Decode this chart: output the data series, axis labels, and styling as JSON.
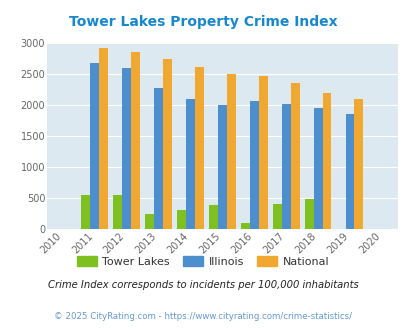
{
  "title": "Tower Lakes Property Crime Index",
  "title_color": "#1888cc",
  "years": [
    2011,
    2012,
    2013,
    2014,
    2015,
    2016,
    2017,
    2018,
    2019
  ],
  "tower_lakes": [
    555,
    555,
    250,
    310,
    390,
    100,
    410,
    495,
    0
  ],
  "illinois": [
    2670,
    2590,
    2280,
    2090,
    2000,
    2060,
    2020,
    1950,
    1860
  ],
  "national": [
    2910,
    2860,
    2740,
    2610,
    2500,
    2470,
    2360,
    2190,
    2100
  ],
  "tower_lakes_color": "#7dc020",
  "illinois_color": "#4d8fcc",
  "national_color": "#f0a830",
  "bg_color": "#dde9f0",
  "xlim": [
    2009.5,
    2020.5
  ],
  "ylim": [
    0,
    3000
  ],
  "yticks": [
    0,
    500,
    1000,
    1500,
    2000,
    2500,
    3000
  ],
  "xticks": [
    2010,
    2011,
    2012,
    2013,
    2014,
    2015,
    2016,
    2017,
    2018,
    2019,
    2020
  ],
  "note": "Crime Index corresponds to incidents per 100,000 inhabitants",
  "copyright": "© 2025 CityRating.com - https://www.cityrating.com/crime-statistics/",
  "note_color": "#222222",
  "copyright_color": "#6699cc",
  "bar_width": 0.28
}
